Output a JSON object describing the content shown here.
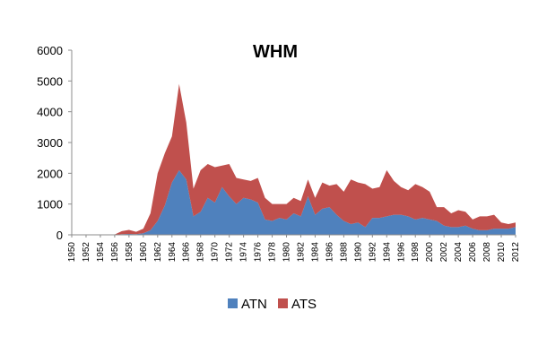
{
  "chart_data": {
    "type": "area",
    "stacked": true,
    "title": "WHM",
    "xlabel": "",
    "ylabel": "",
    "ylim": [
      0,
      6000
    ],
    "yticks": [
      0,
      1000,
      2000,
      3000,
      4000,
      5000,
      6000
    ],
    "x": [
      1950,
      1951,
      1952,
      1953,
      1954,
      1955,
      1956,
      1957,
      1958,
      1959,
      1960,
      1961,
      1962,
      1963,
      1964,
      1965,
      1966,
      1967,
      1968,
      1969,
      1970,
      1971,
      1972,
      1973,
      1974,
      1975,
      1976,
      1977,
      1978,
      1979,
      1980,
      1981,
      1982,
      1983,
      1984,
      1985,
      1986,
      1987,
      1988,
      1989,
      1990,
      1991,
      1992,
      1993,
      1994,
      1995,
      1996,
      1997,
      1998,
      1999,
      2000,
      2001,
      2002,
      2003,
      2004,
      2005,
      2006,
      2007,
      2008,
      2009,
      2010,
      2011,
      2012
    ],
    "xticks": [
      "1950",
      "1952",
      "1954",
      "1956",
      "1958",
      "1960",
      "1962",
      "1964",
      "1966",
      "1968",
      "1970",
      "1972",
      "1974",
      "1976",
      "1978",
      "1980",
      "1982",
      "1984",
      "1986",
      "1988",
      "1990",
      "1992",
      "1994",
      "1996",
      "1998",
      "2000",
      "2002",
      "2004",
      "2006",
      "2008",
      "2010",
      "2012"
    ],
    "grid": false,
    "legend_position": "bottom",
    "series": [
      {
        "name": "ATN",
        "color": "#4F81BD",
        "values": [
          0,
          0,
          0,
          0,
          0,
          0,
          0,
          20,
          30,
          20,
          50,
          150,
          450,
          950,
          1700,
          2100,
          1800,
          600,
          750,
          1200,
          1050,
          1550,
          1250,
          1000,
          1200,
          1150,
          1050,
          500,
          450,
          550,
          500,
          700,
          600,
          1250,
          650,
          850,
          900,
          650,
          450,
          350,
          400,
          250,
          550,
          550,
          600,
          650,
          650,
          600,
          500,
          550,
          500,
          450,
          300,
          250,
          250,
          300,
          200,
          150,
          150,
          200,
          200,
          200,
          250
        ]
      },
      {
        "name": "ATS",
        "color": "#C0504D",
        "values": [
          0,
          0,
          0,
          0,
          0,
          0,
          10,
          100,
          130,
          80,
          150,
          550,
          1550,
          1700,
          1500,
          2800,
          1850,
          900,
          1350,
          1100,
          1150,
          700,
          1050,
          850,
          600,
          600,
          800,
          700,
          550,
          450,
          500,
          500,
          500,
          550,
          550,
          850,
          700,
          1000,
          950,
          1450,
          1300,
          1400,
          950,
          1000,
          1500,
          1100,
          900,
          850,
          1150,
          1000,
          900,
          450,
          600,
          450,
          550,
          450,
          300,
          450,
          450,
          450,
          200,
          150,
          150
        ]
      }
    ]
  }
}
